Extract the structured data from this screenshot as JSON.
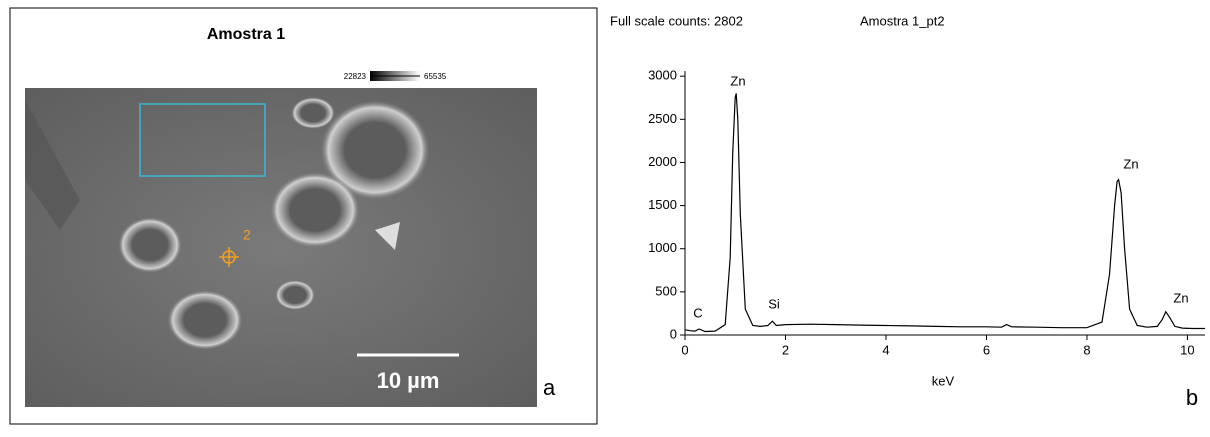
{
  "image_panel": {
    "title": "Amostra 1",
    "colorbar_min": "22823",
    "colorbar_max": "65535",
    "marker_label": "2",
    "scale_bar": "10 µm",
    "panel_letter": "a"
  },
  "chart_data": {
    "type": "line",
    "title": "Full scale counts: 2802",
    "subtitle": "Amostra 1_pt2",
    "x_label": "keV",
    "panel_letter": "b",
    "color": "#000000",
    "x": [
      0,
      0.1,
      0.2,
      0.28,
      0.4,
      0.6,
      0.8,
      0.9,
      0.95,
      1.0,
      1.02,
      1.05,
      1.1,
      1.2,
      1.35,
      1.5,
      1.65,
      1.74,
      1.82,
      2.0,
      2.5,
      3.0,
      3.5,
      4.0,
      4.5,
      5.0,
      5.5,
      6.0,
      6.3,
      6.4,
      6.5,
      7.0,
      7.5,
      8.0,
      8.3,
      8.45,
      8.55,
      8.6,
      8.63,
      8.68,
      8.75,
      8.85,
      9.0,
      9.2,
      9.4,
      9.5,
      9.57,
      9.65,
      9.75,
      9.9,
      10.1,
      10.35
    ],
    "values": [
      60,
      50,
      45,
      70,
      40,
      45,
      120,
      900,
      2100,
      2750,
      2800,
      2500,
      1400,
      300,
      110,
      100,
      110,
      160,
      110,
      120,
      125,
      120,
      115,
      110,
      105,
      100,
      95,
      95,
      90,
      120,
      95,
      90,
      85,
      85,
      150,
      700,
      1500,
      1780,
      1800,
      1650,
      1000,
      300,
      110,
      90,
      100,
      180,
      270,
      200,
      100,
      80,
      75,
      75
    ],
    "xlim": [
      0,
      10.35
    ],
    "ylim": [
      0,
      3060
    ],
    "xticks": [
      0,
      2,
      4,
      6,
      8,
      10
    ],
    "yticks": [
      0,
      500,
      1000,
      1500,
      2000,
      2500,
      3000
    ],
    "annotations": [
      "C",
      "Si",
      "Zn",
      "Zn",
      "Zn"
    ]
  }
}
